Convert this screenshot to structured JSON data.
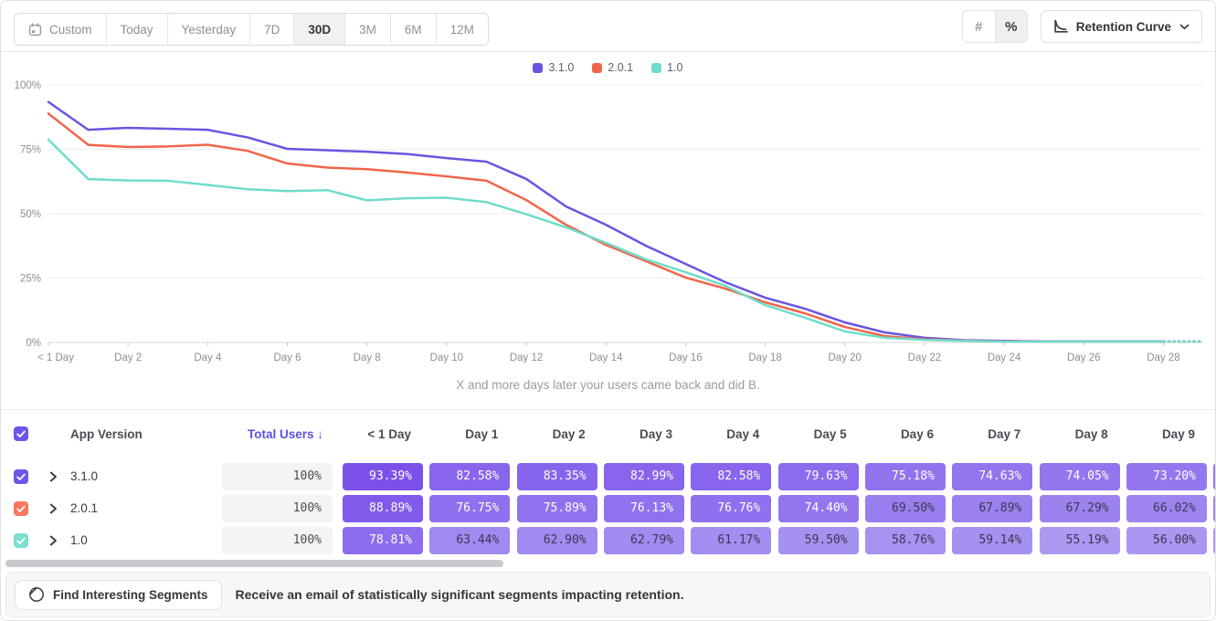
{
  "toolbar": {
    "date_ranges": [
      {
        "label": "Custom",
        "icon": "calendar",
        "active": false
      },
      {
        "label": "Today",
        "active": false
      },
      {
        "label": "Yesterday",
        "active": false
      },
      {
        "label": "7D",
        "active": false
      },
      {
        "label": "30D",
        "active": true
      },
      {
        "label": "3M",
        "active": false
      },
      {
        "label": "6M",
        "active": false
      },
      {
        "label": "12M",
        "active": false
      }
    ],
    "value_modes": [
      {
        "label": "#",
        "name": "absolute-numbers",
        "active": false
      },
      {
        "label": "%",
        "name": "percentages",
        "active": true
      }
    ],
    "view_selector_label": "Retention Curve"
  },
  "chart_data": {
    "type": "line",
    "caption": "X and more days later your users came back and did B.",
    "x_unit": "day",
    "x": [
      0,
      1,
      2,
      3,
      4,
      5,
      6,
      7,
      8,
      9,
      10,
      11,
      12,
      13,
      14,
      15,
      16,
      17,
      18,
      19,
      20,
      21,
      22,
      23,
      24,
      25,
      26,
      27,
      28,
      29
    ],
    "x_tick_labels": [
      "< 1 Day",
      "Day 2",
      "Day 4",
      "Day 6",
      "Day 8",
      "Day 10",
      "Day 12",
      "Day 14",
      "Day 16",
      "Day 18",
      "Day 20",
      "Day 22",
      "Day 24",
      "Day 26",
      "Day 28"
    ],
    "x_tick_days": [
      0,
      2,
      4,
      6,
      8,
      10,
      12,
      14,
      16,
      18,
      20,
      22,
      24,
      26,
      28
    ],
    "ylim": [
      0,
      100
    ],
    "y_ticks": [
      0,
      25,
      50,
      75,
      100
    ],
    "y_tick_labels": [
      "0%",
      "25%",
      "50%",
      "75%",
      "100%"
    ],
    "grid": true,
    "legend_position": "top-center",
    "dashed_tail_from_day": 28,
    "series": [
      {
        "name": "3.1.0",
        "color": "#6A55E1",
        "values": [
          93.39,
          82.58,
          83.35,
          82.99,
          82.58,
          79.63,
          75.18,
          74.63,
          74.05,
          73.2,
          71.6,
          70.2,
          63.5,
          52.8,
          45.7,
          37.6,
          30.5,
          23.4,
          17.4,
          13.1,
          7.8,
          3.9,
          1.8,
          0.9,
          0.6,
          0.4,
          0.4,
          0.4,
          0.4,
          0.4
        ]
      },
      {
        "name": "2.0.1",
        "color": "#F0654A",
        "values": [
          88.89,
          76.75,
          75.89,
          76.13,
          76.76,
          74.4,
          69.5,
          67.89,
          67.29,
          66.02,
          64.5,
          62.8,
          55.3,
          45.7,
          37.9,
          31.6,
          25.2,
          20.9,
          15.6,
          11.3,
          6.0,
          2.5,
          1.2,
          0.7,
          0.4,
          0.3,
          0.3,
          0.3,
          0.3,
          0.3
        ]
      },
      {
        "name": "1.0",
        "color": "#6FDCCB",
        "values": [
          78.81,
          63.44,
          62.9,
          62.79,
          61.17,
          59.5,
          58.76,
          59.14,
          55.19,
          56.0,
          56.2,
          54.5,
          49.8,
          44.7,
          38.7,
          32.3,
          27.3,
          22.0,
          14.5,
          9.6,
          4.3,
          1.8,
          1.0,
          0.6,
          0.3,
          0.3,
          0.3,
          0.3,
          0.3,
          0.3
        ]
      }
    ]
  },
  "table": {
    "header": {
      "app_version": "App Version",
      "total_users": "Total Users",
      "sort_arrow": "↓",
      "day_columns": [
        "< 1 Day",
        "Day 1",
        "Day 2",
        "Day 3",
        "Day 4",
        "Day 5",
        "Day 6",
        "Day 7",
        "Day 8",
        "Day 9"
      ]
    },
    "rows": [
      {
        "label": "3.1.0",
        "checkbox_color": "#6C55E8",
        "total_users": "100%",
        "values": [
          93.39,
          82.58,
          83.35,
          82.99,
          82.58,
          79.63,
          75.18,
          74.63,
          74.05,
          73.2
        ]
      },
      {
        "label": "2.0.1",
        "checkbox_color": "#F8775F",
        "total_users": "100%",
        "values": [
          88.89,
          76.75,
          75.89,
          76.13,
          76.76,
          74.4,
          69.5,
          67.89,
          67.29,
          66.02
        ]
      },
      {
        "label": "1.0",
        "checkbox_color": "#7CDFD0",
        "total_users": "100%",
        "values": [
          78.81,
          63.44,
          62.9,
          62.79,
          61.17,
          59.5,
          58.76,
          59.14,
          55.19,
          56.0
        ]
      }
    ],
    "header_checkbox_color": "#6C55E8"
  },
  "footer": {
    "button_label": "Find Interesting Segments",
    "description": "Receive an email of statistically significant segments impacting retention."
  },
  "colors": {
    "cell_ramp_low": "#AB99F2",
    "cell_ramp_high": "#7A50EA",
    "cell_text_dark": "#3F3550",
    "cell_text_light": "#FFFFFF",
    "grid_line": "#EDEDEF",
    "axis_line": "#D9D9DD",
    "axis_label": "#8E8E96"
  }
}
